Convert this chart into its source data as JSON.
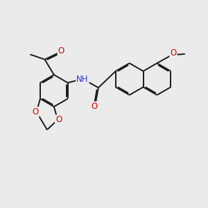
{
  "background_color": "#ebebeb",
  "bond_color": "#1a1a1a",
  "bond_width": 1.4,
  "dbo": 0.055,
  "atom_colors": {
    "O": "#cc0000",
    "N": "#3333cc",
    "C": "#1a1a1a"
  },
  "font_size_atom": 8.5,
  "font_size_meo": 7.5
}
